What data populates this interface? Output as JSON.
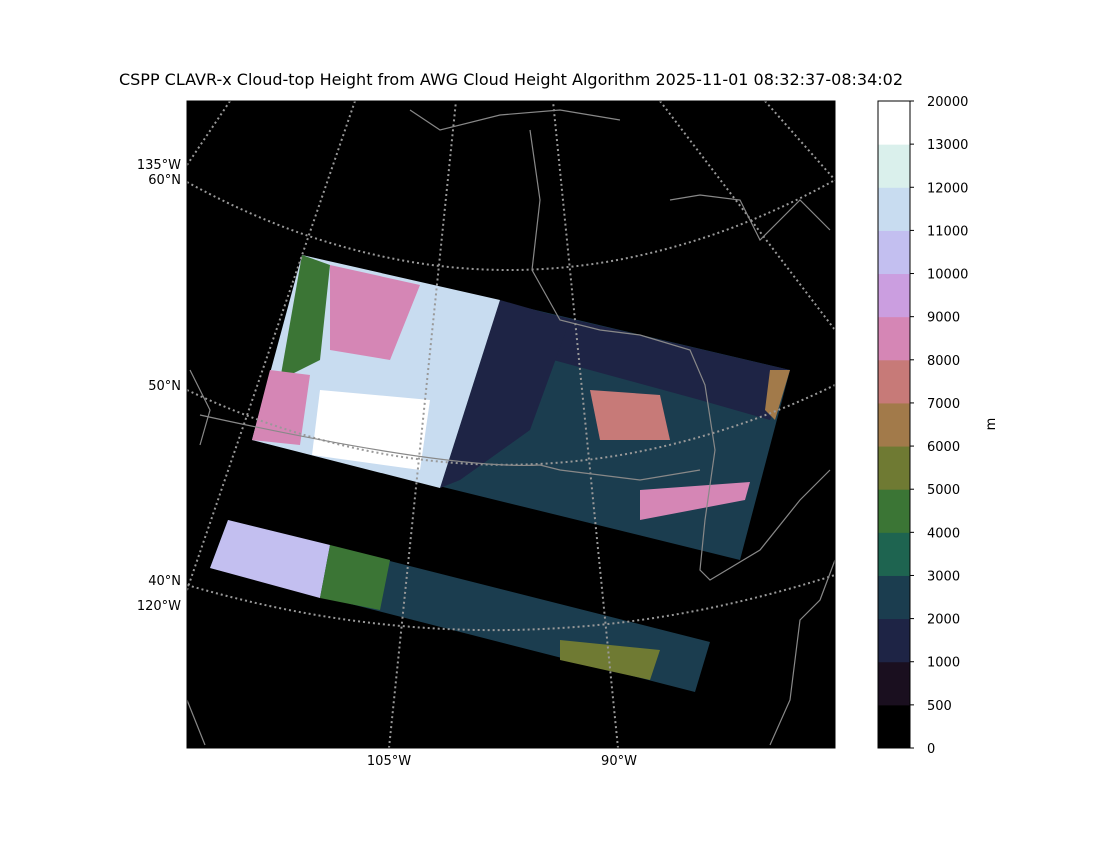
{
  "title": "CSPP CLAVR-x Cloud-top Height from AWG Cloud Height Algorithm 2025-11-01 08:32:37-08:34:02",
  "map": {
    "lat_labels": [
      "60°N",
      "50°N",
      "40°N"
    ],
    "lon_labels_left": [
      "135°W",
      "120°W"
    ],
    "lon_labels_bottom": [
      "105°W",
      "90°W"
    ]
  },
  "colorbar": {
    "label": "m",
    "ticks": [
      0,
      500,
      1000,
      2000,
      3000,
      4000,
      5000,
      6000,
      7000,
      8000,
      9000,
      10000,
      11000,
      12000,
      13000,
      20000
    ],
    "colors": [
      "#000000",
      "#1a0f1f",
      "#1e2445",
      "#1b3d4f",
      "#1e6450",
      "#3b7535",
      "#6f7a33",
      "#a27a4a",
      "#c77a78",
      "#d586b5",
      "#cb9ee0",
      "#c3bff0",
      "#c8dcf0",
      "#daf0ec",
      "#ffffff"
    ]
  }
}
